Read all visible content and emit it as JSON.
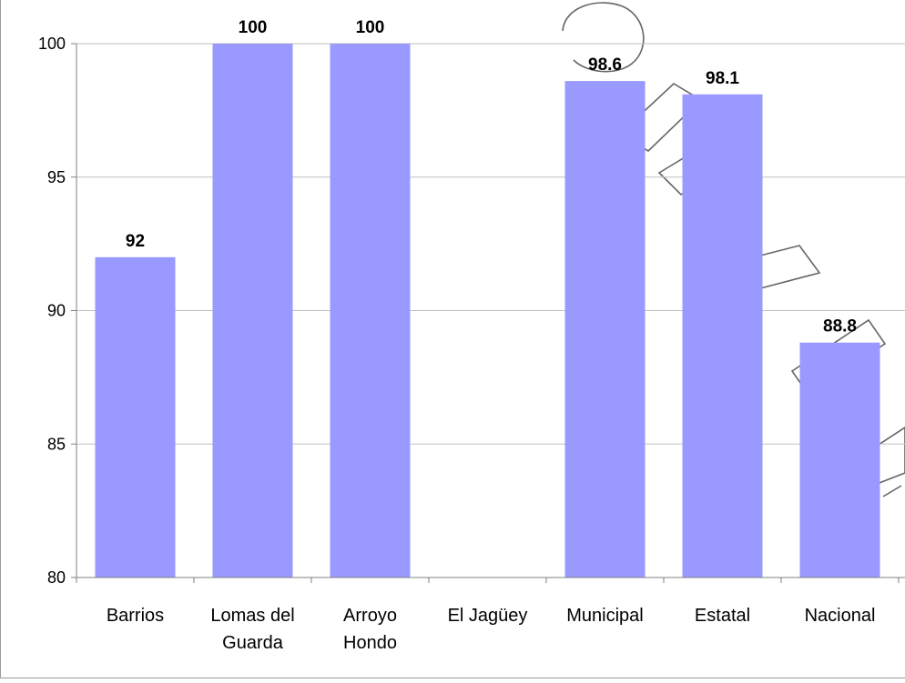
{
  "chart_data": {
    "type": "bar",
    "title": "",
    "xlabel": "",
    "ylabel": "",
    "categories": [
      [
        "Barrios"
      ],
      [
        "Lomas del",
        "Guarda"
      ],
      [
        "Arroyo",
        "Hondo"
      ],
      [
        "El Jagüey"
      ],
      [
        "Municipal"
      ],
      [
        "Estatal"
      ],
      [
        "Nacional"
      ]
    ],
    "values": [
      92,
      100,
      100,
      null,
      98.6,
      98.1,
      88.8
    ],
    "data_labels": [
      "92",
      "100",
      "100",
      "",
      "98.6",
      "98.1",
      "88.8"
    ],
    "ylim": [
      80,
      100
    ],
    "yticks": [
      80,
      85,
      90,
      95,
      100
    ],
    "grid": true,
    "legend": "none",
    "bar_color": "#9999ff",
    "grid_color": "#c0c0c0"
  }
}
